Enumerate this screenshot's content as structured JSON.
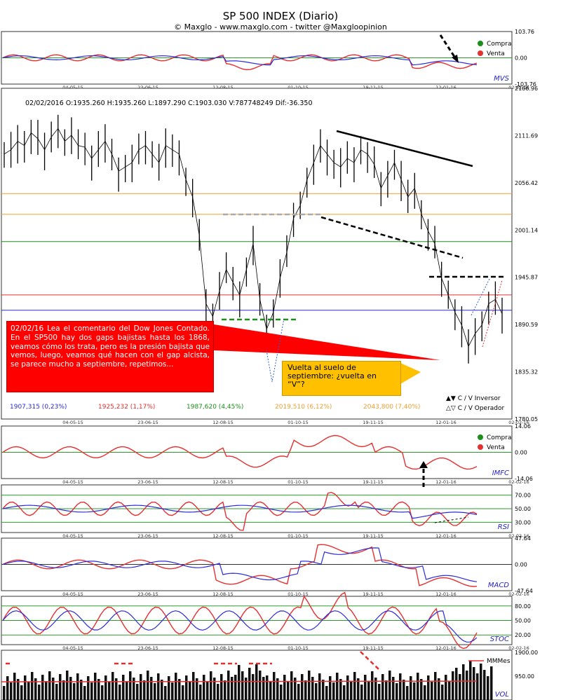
{
  "header": {
    "title": "SP 500 INDEX (Diario)",
    "subtitle": "© Maxglo - www.maxglo.com - twitter @Maxgloopinion"
  },
  "chart_data": {
    "type": "line",
    "title": "SP 500 INDEX (Diario)",
    "x_dates": [
      "04-05-15",
      "23-06-15",
      "12-08-15",
      "01-10-15",
      "19-11-15",
      "12-01-16",
      "02-02-16"
    ],
    "main": {
      "ohlc_line": "02/02/2016  O:1935.260  H:1935.260  L:1897.290  C:1903.030  V:787748249  Dif:-36.350",
      "ylim": [
        1780.05,
        2166.96
      ],
      "y_ticks": [
        "2166.96",
        "2111.69",
        "2056.42",
        "2001.14",
        "1945.87",
        "1890.59",
        "1835.32",
        "1780.05"
      ],
      "close": [
        2090,
        2095,
        2105,
        2100,
        2115,
        2108,
        2095,
        2110,
        2120,
        2105,
        2112,
        2100,
        2098,
        2085,
        2095,
        2105,
        2090,
        2070,
        2075,
        2080,
        2095,
        2100,
        2090,
        2080,
        2100,
        2095,
        2090,
        2060,
        2040,
        1995,
        1915,
        1900,
        1930,
        1955,
        1940,
        1925,
        1955,
        1985,
        1920,
        1885,
        1905,
        1945,
        1975,
        2015,
        2030,
        2060,
        2080,
        2100,
        2090,
        2080,
        2075,
        2085,
        2080,
        2095,
        2090,
        2078,
        2050,
        2065,
        2080,
        2060,
        2040,
        2050,
        2020,
        2000,
        1985,
        1945,
        1925,
        1905,
        1890,
        1865,
        1880,
        1890,
        1915,
        1920,
        1903
      ],
      "levels": [
        {
          "value": 1907.315,
          "label": "1907,315 (0,23%)",
          "color": "#2b2bd9"
        },
        {
          "value": 1925.232,
          "label": "1925,232 (1,17%)",
          "color": "#e53030"
        },
        {
          "value": 1987.62,
          "label": "1987,620 (4,45%)",
          "color": "#1a8f1a"
        },
        {
          "value": 2019.51,
          "label": "2019,510 (6,12%)",
          "color": "#f0a030"
        },
        {
          "value": 2043.8,
          "label": "2043,800 (7,40%)",
          "color": "#f0a030"
        }
      ],
      "legend": [
        "C / V Inversor",
        "C / V Operador"
      ]
    },
    "mvs": {
      "label": "MVS",
      "ylim": [
        -103.76,
        103.76
      ],
      "y_ticks": [
        "103.76",
        "0.00",
        "-103.76"
      ],
      "legend": [
        "Compra",
        "Venta"
      ]
    },
    "imfc": {
      "label": "IMFC",
      "ylim": [
        -14.06,
        14.06
      ],
      "y_ticks": [
        "14.06",
        "0.00",
        "-14.06"
      ],
      "legend": [
        "Compra",
        "Venta"
      ]
    },
    "rsi": {
      "label": "RSI",
      "ylim": [
        15,
        85
      ],
      "y_ticks": [
        "70.00",
        "50.00",
        "30.00"
      ]
    },
    "macd": {
      "label": "MACD",
      "ylim": [
        -47.64,
        47.64
      ],
      "y_ticks": [
        "47.64",
        "0.00",
        "-47.64"
      ]
    },
    "stoc": {
      "label": "STOC",
      "ylim": [
        0,
        100
      ],
      "y_ticks": [
        "80.00",
        "50.00",
        "20.00"
      ]
    },
    "vol": {
      "label": "VOL",
      "y_ticks": [
        "1900.00",
        "950.00"
      ],
      "legend": "MMMes"
    }
  },
  "note": {
    "text": "02/02/16  Lea el comentario del Dow Jones Contado. En el SP500 hay dos gaps bajistas hasta los 1868, veamos cómo los trata, pero es la presión bajista que vemos, luego, veamos qué hacen con el gap alcista, se parece mucho a septiembre, repetimos..."
  },
  "callout": {
    "text": "Vuelta al suelo de septiembre: ¿vuelta en “V”?"
  }
}
